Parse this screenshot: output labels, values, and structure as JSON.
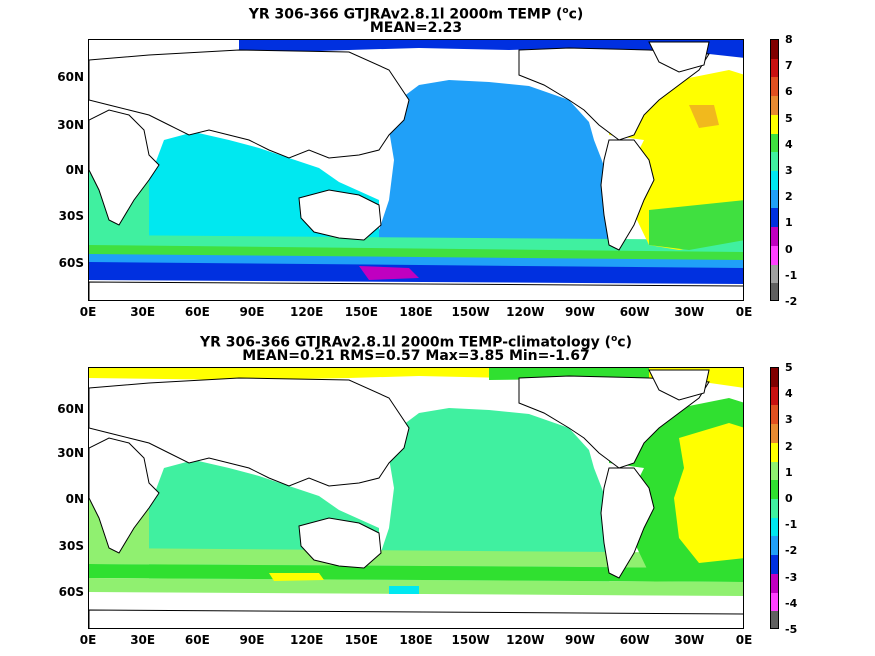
{
  "panels": [
    {
      "title_prefix": "YR 306-366 GTJRAv2.8.1l 2000m TEMP (",
      "title_unit_sup": "o",
      "title_unit": "c)",
      "subtitle": "MEAN=2.23",
      "colorbar": {
        "labels": [
          "8",
          "7",
          "6",
          "5",
          "4",
          "3",
          "2",
          "1",
          "0",
          "-1",
          "-2"
        ],
        "colors": [
          "#800000",
          "#c81010",
          "#e05020",
          "#e88a30",
          "#ffff00",
          "#40e040",
          "#40f0a0",
          "#00e8f0",
          "#20a0f8",
          "#0030e0",
          "#c000c0",
          "#ff40ff",
          "#a0a0a0",
          "#606060"
        ]
      }
    },
    {
      "title_prefix": "YR 306-366 GTJRAv2.8.1l 2000m TEMP-climatology (",
      "title_unit_sup": "o",
      "title_unit": "c)",
      "subtitle": "MEAN=0.21   RMS=0.57   Max=3.85   Min=-1.67",
      "colorbar": {
        "labels": [
          "5",
          "4",
          "3",
          "2",
          "1",
          "0",
          "-1",
          "-2",
          "-3",
          "-4",
          "-5"
        ],
        "colors": [
          "#800000",
          "#c81010",
          "#e05020",
          "#e88a30",
          "#ffff00",
          "#90f070",
          "#30e030",
          "#40f0a0",
          "#00e8f0",
          "#20a0f8",
          "#0030e0",
          "#c000c0",
          "#ff40ff",
          "#606060"
        ]
      }
    }
  ],
  "map_data": {
    "x_ticks": [
      "0E",
      "30E",
      "60E",
      "90E",
      "120E",
      "150E",
      "180E",
      "150W",
      "120W",
      "90W",
      "60W",
      "30W",
      "0E"
    ],
    "y_ticks": [
      "60N",
      "30N",
      "0N",
      "30S",
      "60S"
    ]
  }
}
